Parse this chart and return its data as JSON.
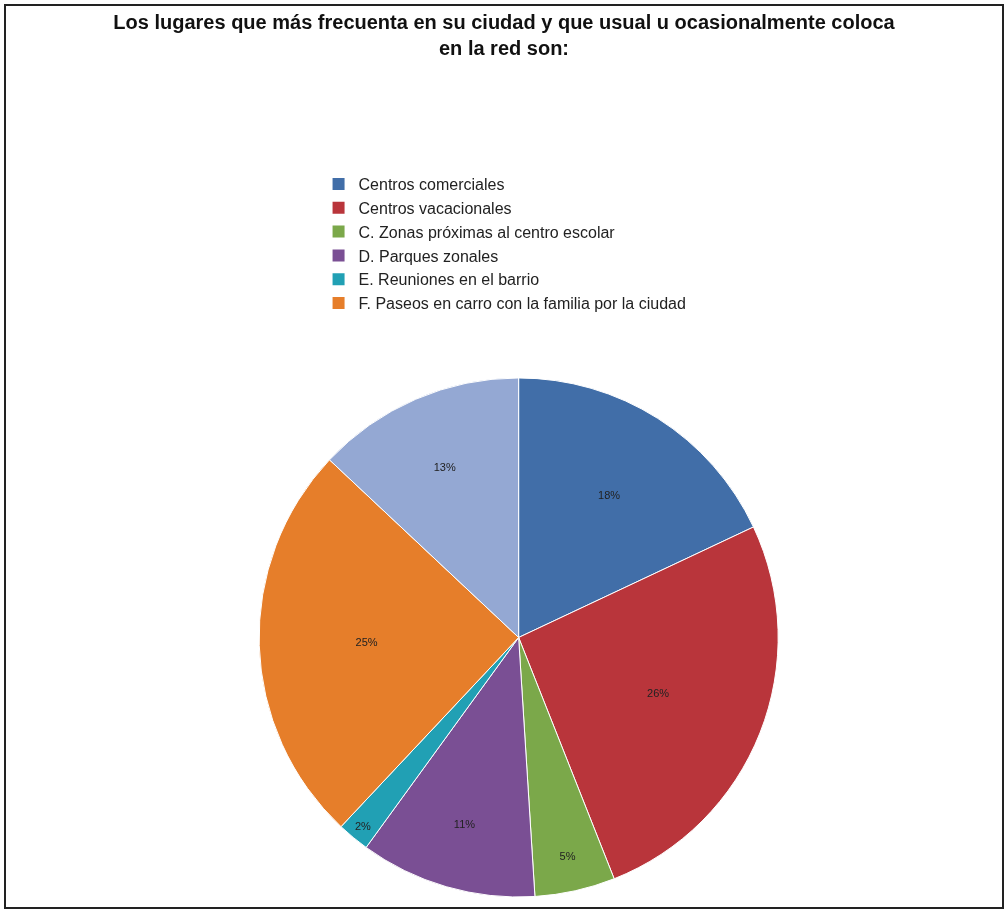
{
  "chart_data": {
    "type": "pie",
    "title": "Los lugares que más frecuenta en su ciudad y que usual u ocasionalmente coloca\nen la red son:",
    "categories": [
      "Centros comerciales",
      "Centros vacacionales",
      "C. Zonas próximas al centro escolar",
      "D. Parques zonales",
      "E. Reuniones en el barrio",
      "F. Paseos en carro con la familia por la ciudad",
      null
    ],
    "values": [
      18,
      26,
      5,
      11,
      2,
      25,
      13
    ],
    "value_labels": [
      "18%",
      "26%",
      "5%",
      "11%",
      "2%",
      "25%",
      "13%"
    ],
    "colors": [
      "#416ea8",
      "#b9353b",
      "#7ba84a",
      "#7a4f94",
      "#21a0b4",
      "#e67e2a",
      "#94a8d3"
    ],
    "legend": "top"
  }
}
